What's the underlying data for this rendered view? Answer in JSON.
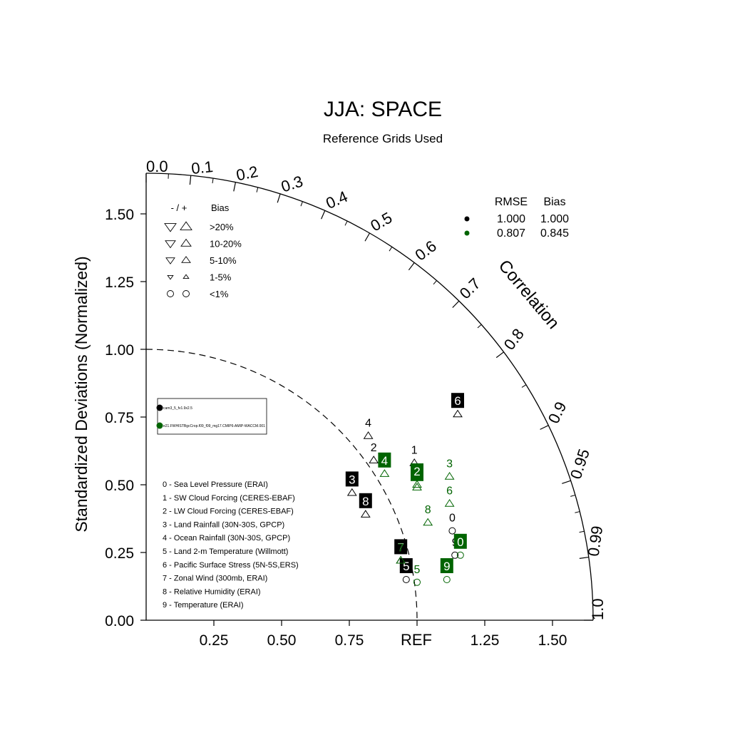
{
  "chart_data": {
    "type": "scatter",
    "subtype": "taylor-diagram",
    "title": "JJA: SPACE",
    "subtitle": "Reference Grids Used",
    "ylabel": "Standardized Deviations (Normalized)",
    "correlation_label": "Correlation",
    "ref_label": "REF",
    "std_range": [
      0,
      1.65
    ],
    "y_ticks": [
      "0.00",
      "0.25",
      "0.50",
      "0.75",
      "1.00",
      "1.25",
      "1.50"
    ],
    "x_ticks": [
      "0.25",
      "0.50",
      "0.75",
      "1.25",
      "1.50"
    ],
    "corr_ticks": [
      "0.0",
      "0.1",
      "0.2",
      "0.3",
      "0.4",
      "0.5",
      "0.6",
      "0.7",
      "0.8",
      "0.9",
      "0.95",
      "0.99",
      "1.0"
    ],
    "reference_arc_std": 1.0,
    "bias_legend": {
      "header_sign": "- / +",
      "header_bias": "Bias",
      "rows": [
        ">20%",
        "10-20%",
        "5-10%",
        "1-5%",
        "<1%"
      ]
    },
    "rmse_table": {
      "headers": [
        "RMSE",
        "Bias"
      ],
      "rows": [
        {
          "color": "#000000",
          "rmse": "1.000",
          "bias": "1.000"
        },
        {
          "color": "#006400",
          "rmse": "0.807",
          "bias": "0.845"
        }
      ]
    },
    "cases": [
      {
        "label": "cam3_5_fv1.9x2.5",
        "color": "#000000"
      },
      {
        "label": "e21.FWHISTBgcCrop.f09_f09_mg17.CMIP6-AMIP-WACCM.001",
        "color": "#006400"
      }
    ],
    "variables": [
      "0 - Sea Level Pressure (ERAI)",
      "1 - SW Cloud Forcing (CERES-EBAF)",
      "2 - LW Cloud Forcing (CERES-EBAF)",
      "3 - Land Rainfall (30N-30S, GPCP)",
      "4 - Ocean Rainfall (30N-30S, GPCP)",
      "5 - Land 2-m Temperature (Willmott)",
      "6 - Pacific Surface Stress (5N-5S,ERS)",
      "7 - Zonal Wind (300mb, ERAI)",
      "8 - Relative Humidity (ERAI)",
      "9 - Temperature (ERAI)"
    ],
    "series": [
      {
        "name": "cam3_5_fv1.9x2.5",
        "color": "#000000",
        "points": [
          {
            "id": "0",
            "x": 1.13,
            "y": 0.33,
            "marker": "circle",
            "label_style": "text"
          },
          {
            "id": "1",
            "x": 0.99,
            "y": 0.58,
            "marker": "up-tri",
            "label_style": "text"
          },
          {
            "id": "2",
            "x": 0.84,
            "y": 0.59,
            "marker": "up-tri",
            "label_style": "text"
          },
          {
            "id": "3",
            "x": 0.76,
            "y": 0.47,
            "marker": "up-tri",
            "label_style": "box"
          },
          {
            "id": "4",
            "x": 0.82,
            "y": 0.68,
            "marker": "up-tri",
            "label_style": "text"
          },
          {
            "id": "5",
            "x": 0.96,
            "y": 0.15,
            "marker": "circle",
            "label_style": "box"
          },
          {
            "id": "6",
            "x": 1.15,
            "y": 0.76,
            "marker": "up-tri",
            "label_style": "box"
          },
          {
            "id": "7",
            "x": 0.94,
            "y": 0.22,
            "marker": "up-tri",
            "label_style": "box"
          },
          {
            "id": "8",
            "x": 0.81,
            "y": 0.39,
            "marker": "up-tri",
            "label_style": "box"
          },
          {
            "id": "9",
            "x": 1.14,
            "y": 0.24,
            "marker": "circle",
            "label_style": "text"
          }
        ]
      },
      {
        "name": "e21.FWHISTBgcCrop.f09_f09_mg17.CMIP6-AMIP-WACCM.001",
        "color": "#006400",
        "points": [
          {
            "id": "0",
            "x": 1.16,
            "y": 0.24,
            "marker": "circle",
            "label_style": "box"
          },
          {
            "id": "1",
            "x": 1.0,
            "y": 0.49,
            "marker": "up-tri",
            "label_style": "box"
          },
          {
            "id": "2",
            "x": 1.0,
            "y": 0.5,
            "marker": "up-tri",
            "label_style": "box"
          },
          {
            "id": "3",
            "x": 1.12,
            "y": 0.53,
            "marker": "up-tri",
            "label_style": "text"
          },
          {
            "id": "4",
            "x": 0.88,
            "y": 0.54,
            "marker": "up-tri",
            "label_style": "box"
          },
          {
            "id": "5",
            "x": 1.0,
            "y": 0.14,
            "marker": "circle",
            "label_style": "text"
          },
          {
            "id": "6",
            "x": 1.12,
            "y": 0.43,
            "marker": "up-tri",
            "label_style": "text"
          },
          {
            "id": "7",
            "x": 0.94,
            "y": 0.22,
            "marker": "up-tri",
            "label_style": "text"
          },
          {
            "id": "8",
            "x": 1.04,
            "y": 0.36,
            "marker": "up-tri",
            "label_style": "text"
          },
          {
            "id": "9",
            "x": 1.11,
            "y": 0.15,
            "marker": "circle",
            "label_style": "box"
          }
        ]
      }
    ]
  }
}
